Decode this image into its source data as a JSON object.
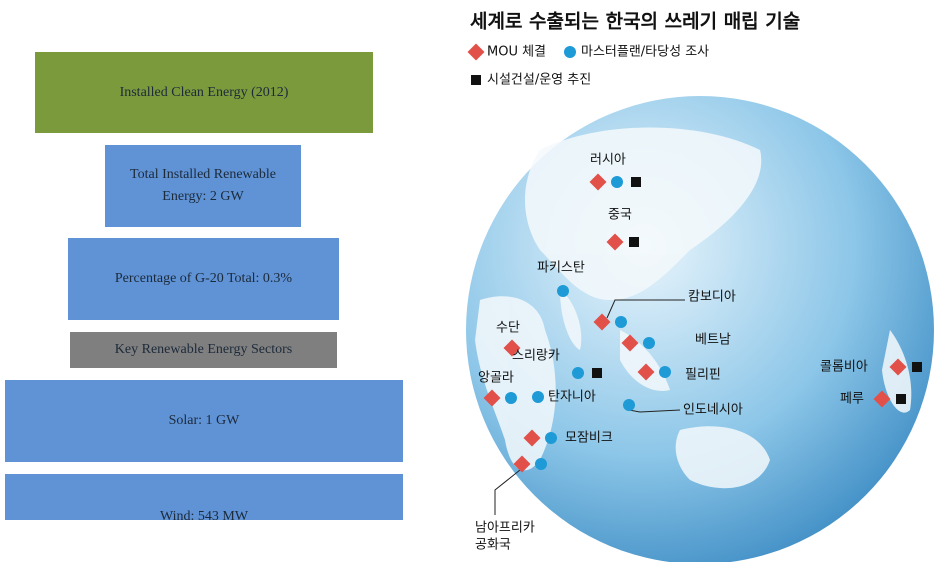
{
  "infographic": {
    "boxes": [
      {
        "text": "Installed Clean Energy (2012)",
        "color": "#7b9a3c"
      },
      {
        "text": "Total Installed Renewable Energy: 2 GW",
        "color": "#5f93d6"
      },
      {
        "text": "Percentage of G-20 Total: 0.3%",
        "color": "#5f93d6"
      },
      {
        "text": "Key Renewable Energy Sectors",
        "color": "#7f7f7f"
      },
      {
        "text": "Solar: 1 GW",
        "color": "#5f93d6"
      },
      {
        "text": "Wind: 543 MW",
        "color": "#5f93d6"
      }
    ]
  },
  "map": {
    "title": "세계로 수출되는 한국의 쓰레기 매립 기술",
    "legend": [
      {
        "symbol": "diamond",
        "color": "#e2504a",
        "label": "MOU 체결"
      },
      {
        "symbol": "circle",
        "color": "#1e9ad6",
        "label": "마스터플랜/타당성 조사"
      },
      {
        "symbol": "square",
        "color": "#111111",
        "label": "시설건설/운영 추진"
      }
    ],
    "countries": [
      {
        "name": [
          "러시아"
        ],
        "markers": [
          "diamond",
          "circle",
          "square"
        ]
      },
      {
        "name": [
          "중국"
        ],
        "markers": [
          "diamond",
          "square"
        ]
      },
      {
        "name": [
          "파키스탄"
        ],
        "markers": [
          "circle"
        ]
      },
      {
        "name": [
          "캄보디아"
        ],
        "markers": [
          "diamond",
          "circle"
        ]
      },
      {
        "name": [
          "수단"
        ],
        "markers": [
          "diamond"
        ]
      },
      {
        "name": [
          "베트남"
        ],
        "markers": [
          "diamond",
          "circle"
        ]
      },
      {
        "name": [
          "스리랑카"
        ],
        "markers": [
          "circle",
          "square"
        ]
      },
      {
        "name": [
          "필리핀"
        ],
        "markers": [
          "diamond",
          "circle"
        ]
      },
      {
        "name": [
          "앙골라"
        ],
        "markers": [
          "diamond",
          "circle"
        ]
      },
      {
        "name": [
          "탄자니아"
        ],
        "markers": [
          "circle"
        ]
      },
      {
        "name": [
          "인도네시아"
        ],
        "markers": [
          "circle"
        ]
      },
      {
        "name": [
          "모잠비크"
        ],
        "markers": [
          "diamond",
          "circle"
        ]
      },
      {
        "name": [
          "남아프리카",
          "공화국"
        ],
        "markers": [
          "diamond",
          "circle"
        ]
      },
      {
        "name": [
          "콜롬비아"
        ],
        "markers": [
          "diamond",
          "square"
        ]
      },
      {
        "name": [
          "페루"
        ],
        "markers": [
          "diamond",
          "square"
        ]
      }
    ]
  }
}
